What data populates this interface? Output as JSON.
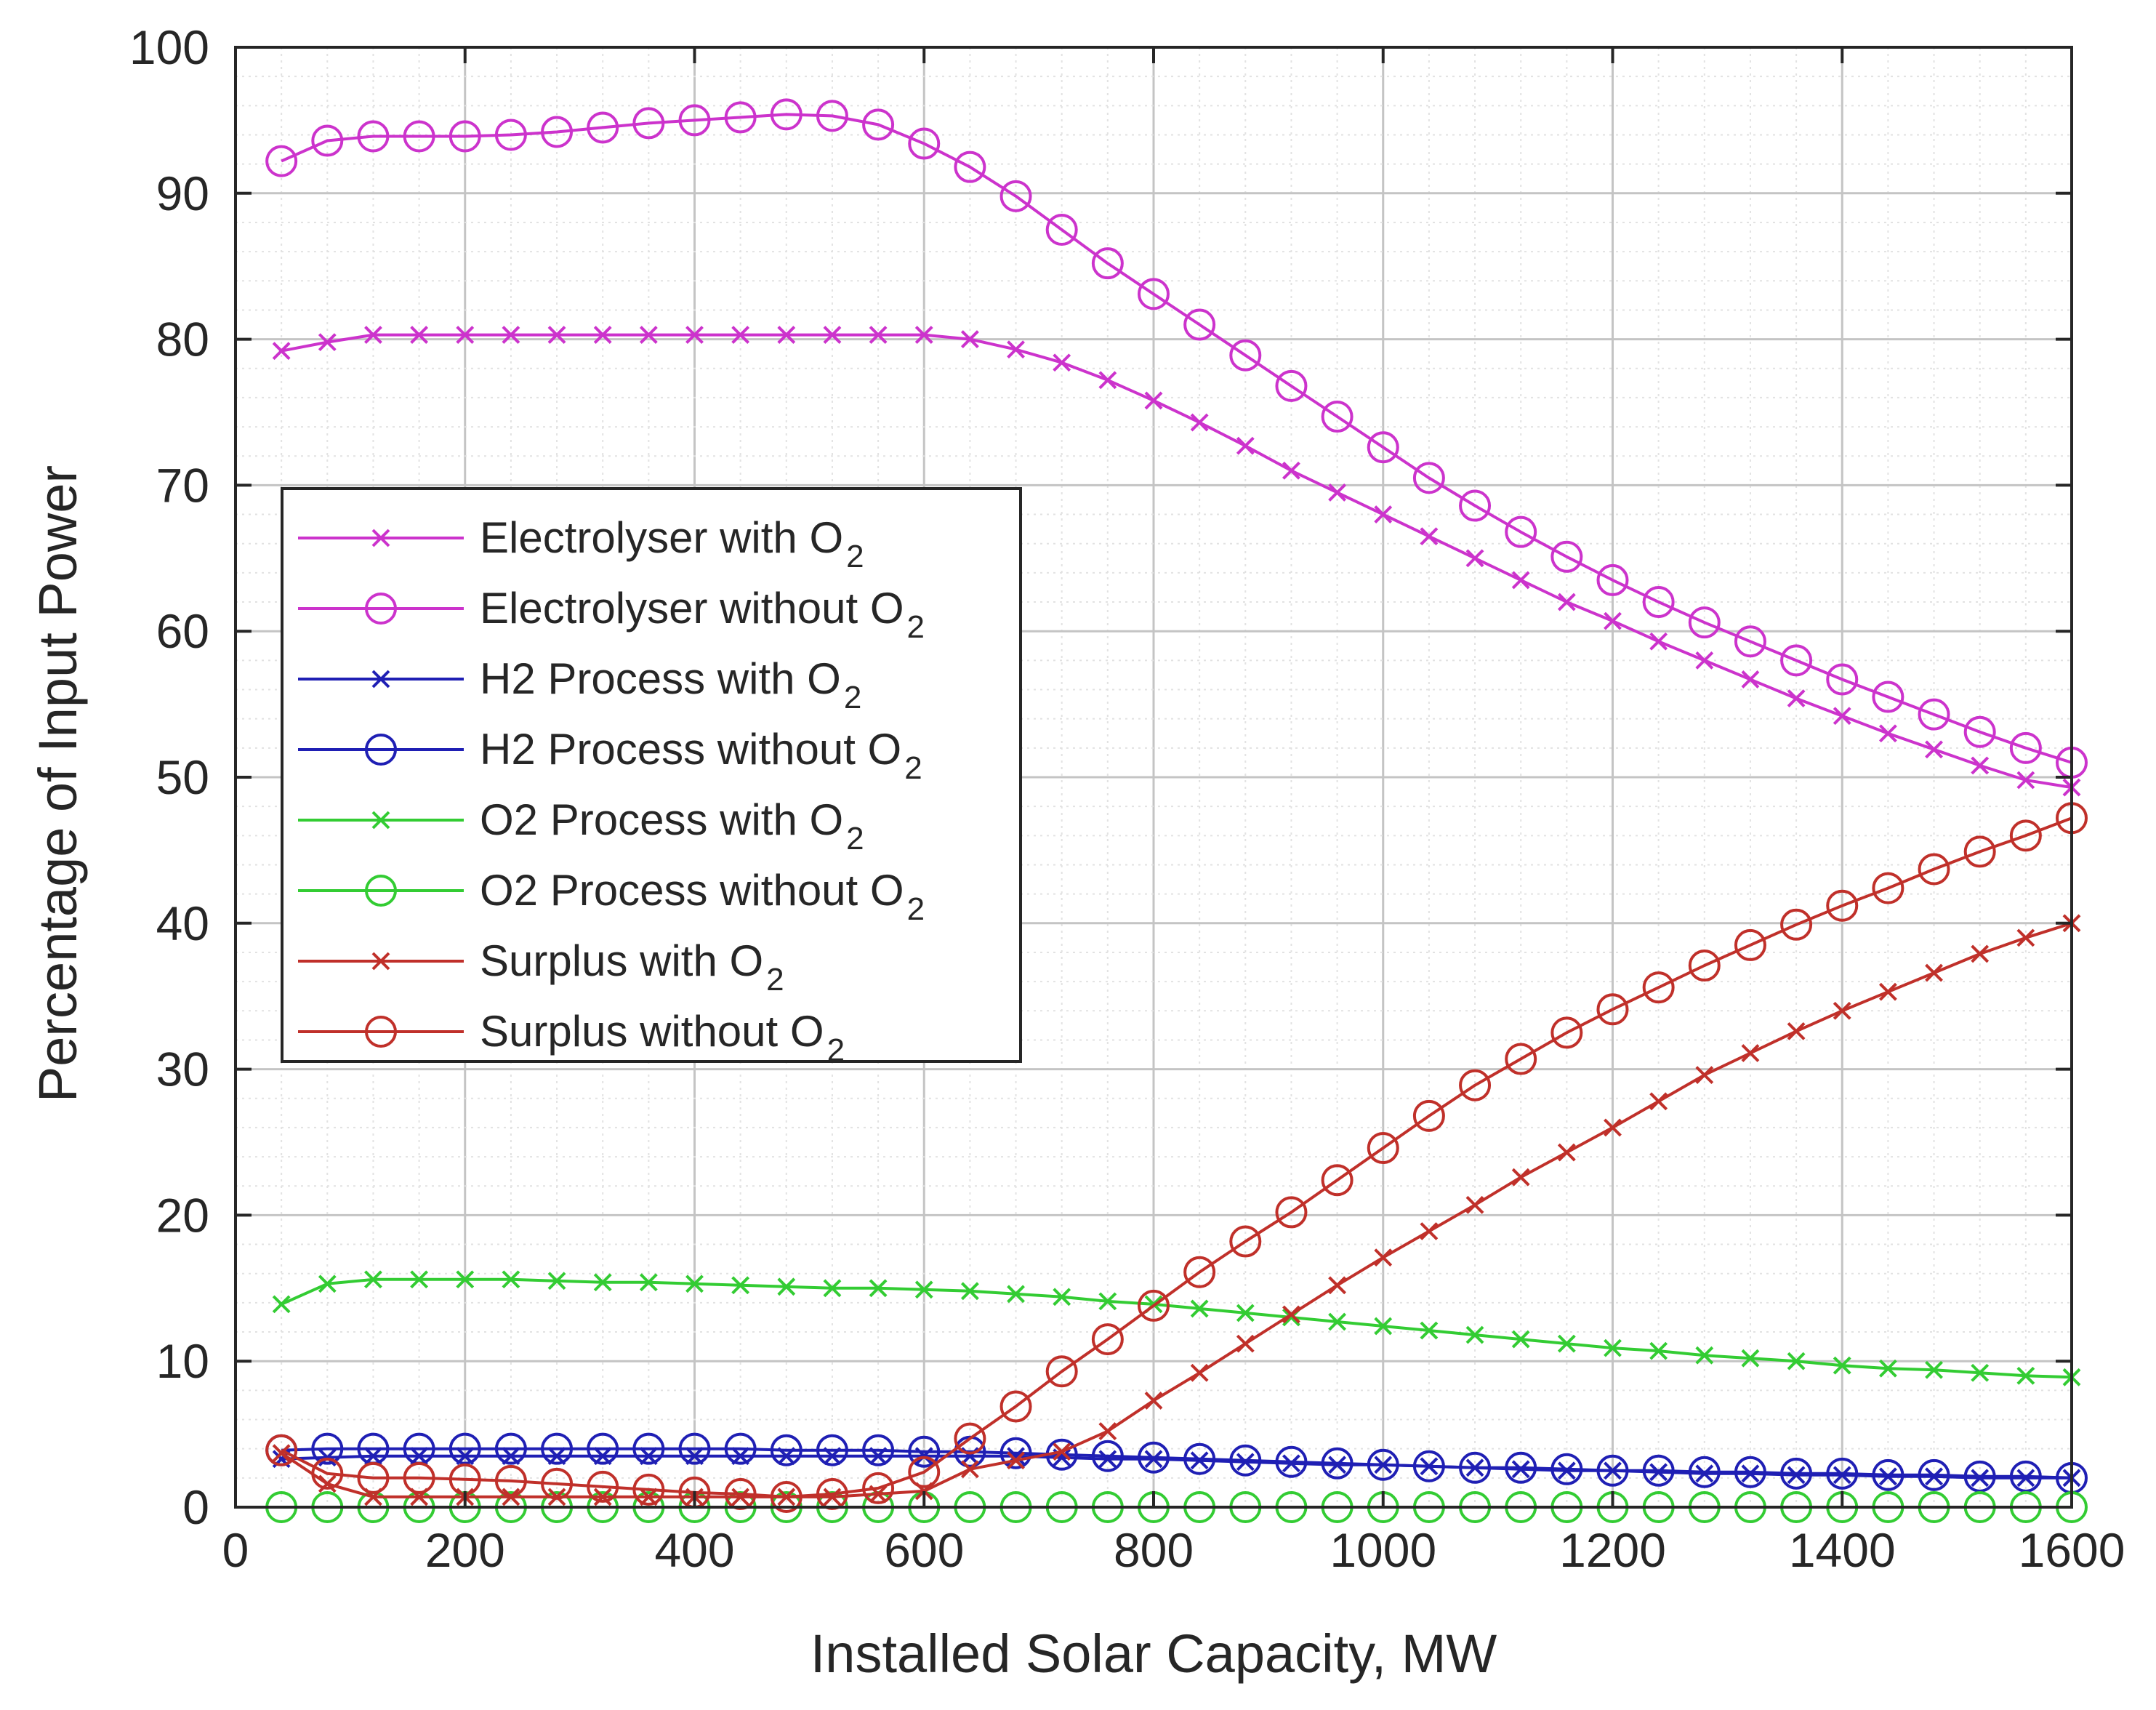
{
  "chart_data": {
    "type": "line",
    "title": "",
    "xlabel": "Installed Solar Capacity, MW",
    "ylabel": "Percentage of Input Power",
    "xlim": [
      0,
      1600
    ],
    "ylim": [
      0,
      100
    ],
    "xticks": [
      0,
      200,
      400,
      600,
      800,
      1000,
      1200,
      1400,
      1600
    ],
    "yticks": [
      0,
      10,
      20,
      30,
      40,
      50,
      60,
      70,
      80,
      90,
      100
    ],
    "grid": "major-and-minor",
    "legend_location": "center-left",
    "x": [
      40,
      80,
      120,
      160,
      200,
      240,
      280,
      320,
      360,
      400,
      440,
      480,
      520,
      560,
      600,
      640,
      680,
      720,
      760,
      800,
      840,
      880,
      920,
      960,
      1000,
      1040,
      1080,
      1120,
      1160,
      1200,
      1240,
      1280,
      1320,
      1360,
      1400,
      1440,
      1480,
      1520,
      1560,
      1600
    ],
    "series": [
      {
        "name": "Electrolyser with O2",
        "label_main": "Electrolyser with O",
        "label_sub": "2",
        "color": "#cc33cc",
        "marker": "x",
        "values": [
          79.2,
          79.8,
          80.3,
          80.3,
          80.3,
          80.3,
          80.3,
          80.3,
          80.3,
          80.3,
          80.3,
          80.3,
          80.3,
          80.3,
          80.3,
          80.0,
          79.3,
          78.4,
          77.2,
          75.8,
          74.3,
          72.7,
          71.0,
          69.5,
          68.0,
          66.5,
          65.0,
          63.5,
          62.0,
          60.7,
          59.3,
          58.0,
          56.7,
          55.4,
          54.2,
          53.0,
          51.9,
          50.8,
          49.8,
          49.3
        ]
      },
      {
        "name": "Electrolyser without O2",
        "label_main": "Electrolyser without O",
        "label_sub": "2",
        "color": "#cc33cc",
        "marker": "o",
        "values": [
          92.2,
          93.6,
          93.9,
          93.9,
          93.9,
          94.0,
          94.2,
          94.5,
          94.8,
          95.0,
          95.2,
          95.4,
          95.3,
          94.7,
          93.4,
          91.8,
          89.8,
          87.5,
          85.2,
          83.1,
          81.0,
          78.9,
          76.8,
          74.7,
          72.6,
          70.5,
          68.6,
          66.8,
          65.1,
          63.5,
          62.0,
          60.6,
          59.3,
          58.0,
          56.7,
          55.5,
          54.3,
          53.1,
          52.0,
          51.0
        ]
      },
      {
        "name": "H2 Process with O2",
        "label_main": "H2 Process with O",
        "label_sub": "2",
        "color": "#1f1fb4",
        "marker": "x",
        "values": [
          3.3,
          3.4,
          3.5,
          3.5,
          3.5,
          3.5,
          3.5,
          3.5,
          3.5,
          3.5,
          3.5,
          3.5,
          3.5,
          3.5,
          3.5,
          3.5,
          3.5,
          3.4,
          3.3,
          3.3,
          3.2,
          3.1,
          3.0,
          2.9,
          2.9,
          2.8,
          2.7,
          2.6,
          2.5,
          2.5,
          2.4,
          2.3,
          2.3,
          2.2,
          2.2,
          2.1,
          2.1,
          2.0,
          2.0,
          2.0
        ]
      },
      {
        "name": "H2 Process without O2",
        "label_main": "H2 Process without O",
        "label_sub": "2",
        "color": "#1f1fb4",
        "marker": "o",
        "values": [
          3.9,
          4.0,
          4.0,
          4.0,
          4.0,
          4.0,
          4.0,
          4.0,
          4.0,
          4.0,
          4.0,
          3.9,
          3.9,
          3.9,
          3.8,
          3.8,
          3.7,
          3.6,
          3.5,
          3.4,
          3.3,
          3.2,
          3.1,
          3.0,
          2.9,
          2.8,
          2.7,
          2.7,
          2.6,
          2.5,
          2.5,
          2.4,
          2.4,
          2.3,
          2.3,
          2.2,
          2.2,
          2.1,
          2.1,
          2.0
        ]
      },
      {
        "name": "O2 Process with O2",
        "label_main": "O2 Process with O",
        "label_sub": "2",
        "color": "#33cc33",
        "marker": "x",
        "values": [
          13.9,
          15.3,
          15.6,
          15.6,
          15.6,
          15.6,
          15.5,
          15.4,
          15.4,
          15.3,
          15.2,
          15.1,
          15.0,
          15.0,
          14.9,
          14.8,
          14.6,
          14.4,
          14.1,
          13.9,
          13.6,
          13.3,
          13.0,
          12.7,
          12.4,
          12.1,
          11.8,
          11.5,
          11.2,
          10.9,
          10.7,
          10.4,
          10.2,
          10.0,
          9.7,
          9.5,
          9.4,
          9.2,
          9.0,
          8.9
        ]
      },
      {
        "name": "O2 Process without O2",
        "label_main": "O2 Process without O",
        "label_sub": "2",
        "color": "#33cc33",
        "marker": "o",
        "values": [
          0,
          0,
          0,
          0,
          0,
          0,
          0,
          0,
          0,
          0,
          0,
          0,
          0,
          0,
          0,
          0,
          0,
          0,
          0,
          0,
          0,
          0,
          0,
          0,
          0,
          0,
          0,
          0,
          0,
          0,
          0,
          0,
          0,
          0,
          0,
          0,
          0,
          0,
          0,
          0
        ]
      },
      {
        "name": "Surplus with O2",
        "label_main": "Surplus with O",
        "label_sub": "2",
        "color": "#c0302a",
        "marker": "x",
        "values": [
          3.7,
          1.6,
          0.7,
          0.7,
          0.7,
          0.7,
          0.7,
          0.7,
          0.7,
          0.7,
          0.7,
          0.7,
          0.7,
          0.9,
          1.1,
          2.6,
          3.2,
          3.8,
          5.2,
          7.3,
          9.2,
          11.2,
          13.2,
          15.2,
          17.1,
          18.9,
          20.7,
          22.6,
          24.3,
          26.0,
          27.8,
          29.6,
          31.1,
          32.6,
          34.0,
          35.3,
          36.6,
          37.9,
          39.0,
          40.0
        ]
      },
      {
        "name": "Surplus without O2",
        "label_main": "Surplus without O",
        "label_sub": "2",
        "color": "#c0302a",
        "marker": "o",
        "values": [
          3.9,
          2.3,
          2.0,
          2.0,
          1.9,
          1.8,
          1.6,
          1.4,
          1.2,
          1.0,
          0.9,
          0.7,
          0.9,
          1.3,
          2.4,
          4.7,
          6.9,
          9.3,
          11.5,
          13.8,
          16.1,
          18.2,
          20.2,
          22.4,
          24.6,
          26.8,
          28.9,
          30.7,
          32.5,
          34.1,
          35.6,
          37.1,
          38.5,
          39.9,
          41.2,
          42.4,
          43.7,
          44.9,
          46.0,
          47.2
        ]
      }
    ]
  }
}
